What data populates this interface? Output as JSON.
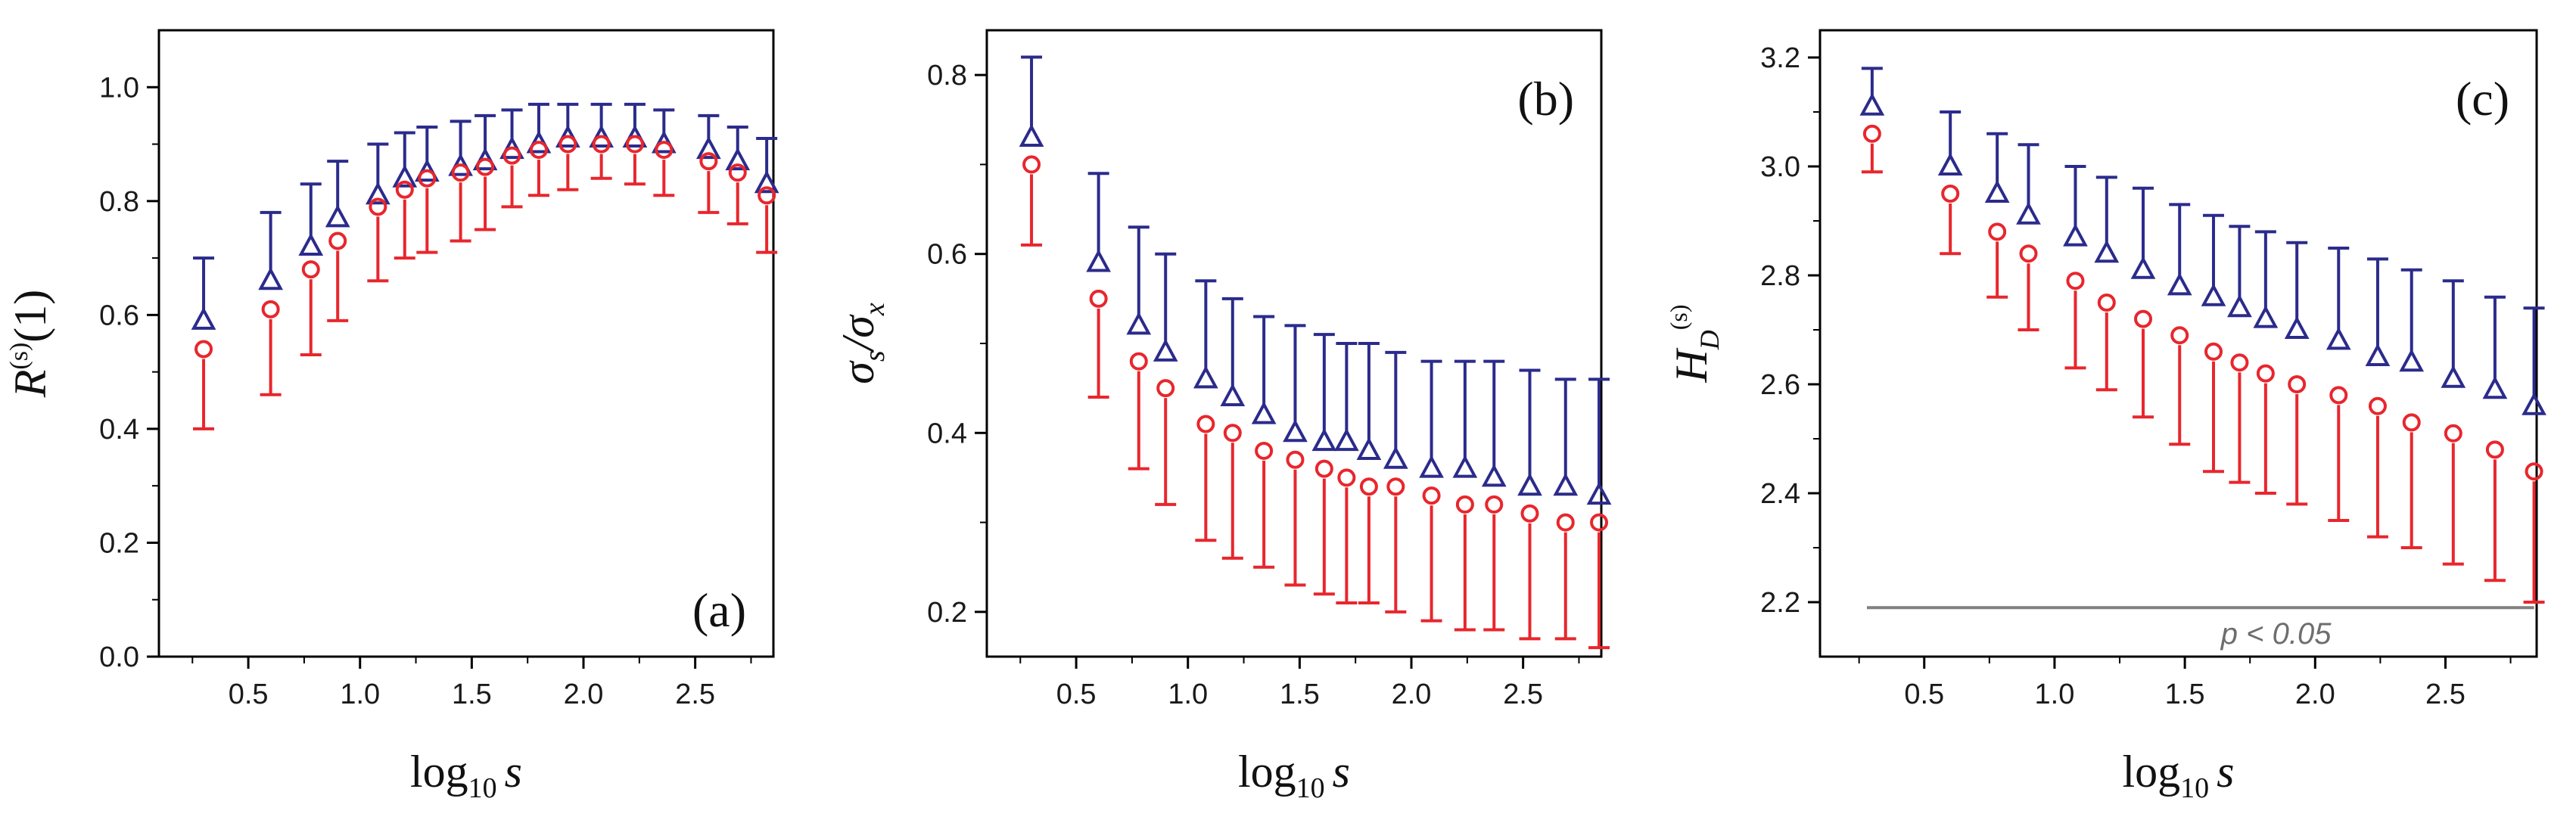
{
  "colors": {
    "series_triangle": "#2b2b8c",
    "series_circle": "#e8262d",
    "annotation": "#808080"
  },
  "chart_data": [
    {
      "type": "scatter",
      "panel_label": "(a)",
      "xlabel_main": "log",
      "xlabel_sub": "10",
      "xlabel_var": "s",
      "ylabel_main": "R",
      "ylabel_sup": "(s)",
      "ylabel_tail": "(1)",
      "xlim": [
        0.1,
        2.85
      ],
      "ylim": [
        0.0,
        1.1
      ],
      "xticks": [
        "0.5",
        "1.0",
        "1.5",
        "2.0",
        "2.5"
      ],
      "yticks": [
        "0.0",
        "0.2",
        "0.4",
        "0.6",
        "0.8",
        "1.0"
      ],
      "error_direction_triangle": "up",
      "error_direction_circle": "down",
      "x": [
        0.3,
        0.6,
        0.78,
        0.9,
        1.08,
        1.2,
        1.3,
        1.45,
        1.56,
        1.68,
        1.8,
        1.93,
        2.08,
        2.23,
        2.36,
        2.56,
        2.69,
        2.82
      ],
      "series": [
        {
          "name": "triangle",
          "marker": "triangle",
          "values": [
            0.59,
            0.66,
            0.72,
            0.77,
            0.81,
            0.84,
            0.85,
            0.86,
            0.87,
            0.89,
            0.9,
            0.91,
            0.91,
            0.91,
            0.9,
            0.89,
            0.87,
            0.83
          ],
          "error_ends": [
            0.7,
            0.78,
            0.83,
            0.87,
            0.9,
            0.92,
            0.93,
            0.94,
            0.95,
            0.96,
            0.97,
            0.97,
            0.97,
            0.97,
            0.96,
            0.95,
            0.93,
            0.91
          ]
        },
        {
          "name": "circle",
          "marker": "circle",
          "values": [
            0.54,
            0.61,
            0.68,
            0.73,
            0.79,
            0.82,
            0.84,
            0.85,
            0.86,
            0.88,
            0.89,
            0.9,
            0.9,
            0.9,
            0.89,
            0.87,
            0.85,
            0.81
          ],
          "error_ends": [
            0.4,
            0.46,
            0.53,
            0.59,
            0.66,
            0.7,
            0.71,
            0.73,
            0.75,
            0.79,
            0.81,
            0.82,
            0.84,
            0.83,
            0.81,
            0.78,
            0.76,
            0.71
          ]
        }
      ]
    },
    {
      "type": "scatter",
      "panel_label": "(b)",
      "xlabel_main": "log",
      "xlabel_sub": "10",
      "xlabel_var": "s",
      "ylabel_num": "σ",
      "ylabel_num_sub": "s",
      "ylabel_den": "/σ",
      "ylabel_den_sub": "x",
      "xlim": [
        0.1,
        2.85
      ],
      "ylim": [
        0.15,
        0.85
      ],
      "xticks": [
        "0.5",
        "1.0",
        "1.5",
        "2.0",
        "2.5"
      ],
      "yticks": [
        "0.2",
        "0.4",
        "0.6",
        "0.8"
      ],
      "x": [
        0.3,
        0.6,
        0.78,
        0.9,
        1.08,
        1.2,
        1.34,
        1.48,
        1.61,
        1.71,
        1.81,
        1.93,
        2.09,
        2.24,
        2.37,
        2.53,
        2.69,
        2.84
      ],
      "series": [
        {
          "name": "triangle",
          "marker": "triangle",
          "values": [
            0.73,
            0.59,
            0.52,
            0.49,
            0.46,
            0.44,
            0.42,
            0.4,
            0.39,
            0.39,
            0.38,
            0.37,
            0.36,
            0.36,
            0.35,
            0.34,
            0.34,
            0.33
          ],
          "error_ends": [
            0.82,
            0.69,
            0.63,
            0.6,
            0.57,
            0.55,
            0.53,
            0.52,
            0.51,
            0.5,
            0.5,
            0.49,
            0.48,
            0.48,
            0.48,
            0.47,
            0.46,
            0.46
          ]
        },
        {
          "name": "circle",
          "marker": "circle",
          "values": [
            0.7,
            0.55,
            0.48,
            0.45,
            0.41,
            0.4,
            0.38,
            0.37,
            0.36,
            0.35,
            0.34,
            0.34,
            0.33,
            0.32,
            0.32,
            0.31,
            0.3,
            0.3
          ],
          "error_ends": [
            0.61,
            0.44,
            0.36,
            0.32,
            0.28,
            0.26,
            0.25,
            0.23,
            0.22,
            0.21,
            0.21,
            0.2,
            0.19,
            0.18,
            0.18,
            0.17,
            0.17,
            0.16
          ]
        }
      ]
    },
    {
      "type": "scatter",
      "panel_label": "(c)",
      "xlabel_main": "log",
      "xlabel_sub": "10",
      "xlabel_var": "s",
      "ylabel_main": "H",
      "ylabel_sub": "D",
      "ylabel_sup": "(s)",
      "xlim": [
        0.1,
        2.85
      ],
      "ylim": [
        2.1,
        3.25
      ],
      "xticks": [
        "0.5",
        "1.0",
        "1.5",
        "2.0",
        "2.5"
      ],
      "yticks": [
        "2.2",
        "2.4",
        "2.6",
        "2.8",
        "3.0",
        "3.2"
      ],
      "threshold_value": 2.19,
      "threshold_label": "p < 0.05",
      "x": [
        0.3,
        0.6,
        0.78,
        0.9,
        1.08,
        1.2,
        1.34,
        1.48,
        1.61,
        1.71,
        1.81,
        1.93,
        2.09,
        2.24,
        2.37,
        2.53,
        2.69,
        2.84
      ],
      "series": [
        {
          "name": "triangle",
          "marker": "triangle",
          "values": [
            3.11,
            3.0,
            2.95,
            2.91,
            2.87,
            2.84,
            2.81,
            2.78,
            2.76,
            2.74,
            2.72,
            2.7,
            2.68,
            2.65,
            2.64,
            2.61,
            2.59,
            2.56
          ],
          "error_ends": [
            3.18,
            3.1,
            3.06,
            3.04,
            3.0,
            2.98,
            2.96,
            2.93,
            2.91,
            2.89,
            2.88,
            2.86,
            2.85,
            2.83,
            2.81,
            2.79,
            2.76,
            2.74
          ]
        },
        {
          "name": "circle",
          "marker": "circle",
          "values": [
            3.06,
            2.95,
            2.88,
            2.84,
            2.79,
            2.75,
            2.72,
            2.69,
            2.66,
            2.64,
            2.62,
            2.6,
            2.58,
            2.56,
            2.53,
            2.51,
            2.48,
            2.44
          ],
          "error_ends": [
            2.99,
            2.84,
            2.76,
            2.7,
            2.63,
            2.59,
            2.54,
            2.49,
            2.44,
            2.42,
            2.4,
            2.38,
            2.35,
            2.32,
            2.3,
            2.27,
            2.24,
            2.2
          ]
        }
      ]
    }
  ]
}
